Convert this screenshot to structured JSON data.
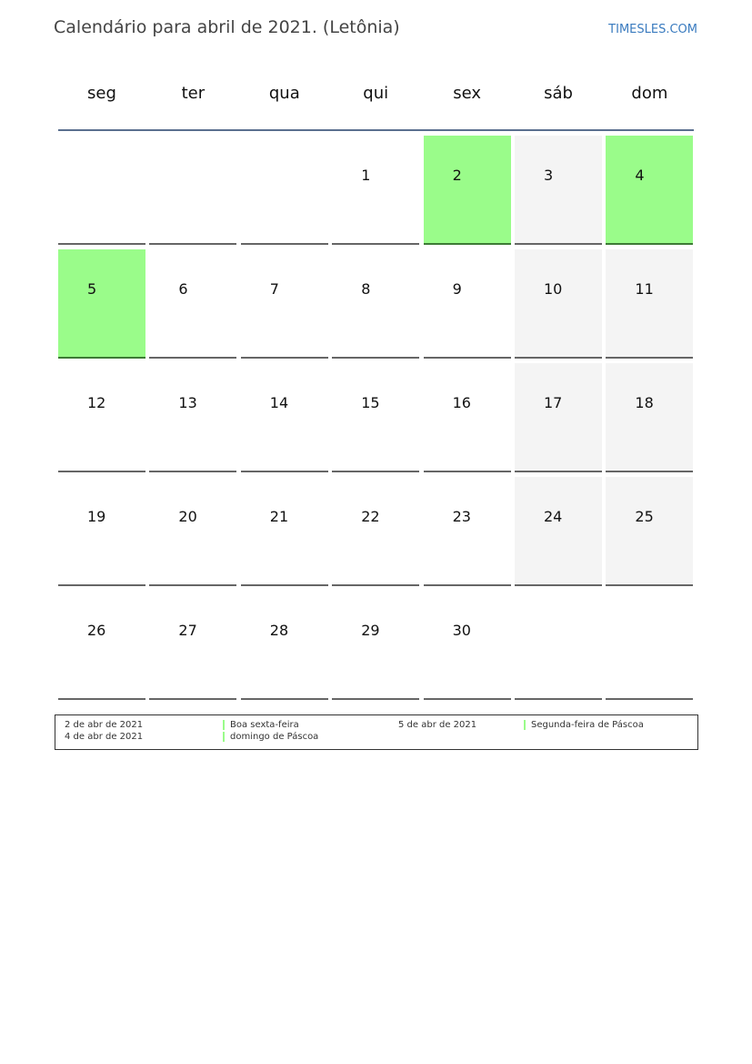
{
  "header": {
    "title": "Calendário para abril de 2021. (Letônia)",
    "brand": "TIMESLES.COM"
  },
  "weekdays": [
    "seg",
    "ter",
    "qua",
    "qui",
    "sex",
    "sáb",
    "dom"
  ],
  "colors": {
    "holiday": "#9afc8a",
    "weekend": "#f4f4f4",
    "header_line": "#5a6f8f"
  },
  "weeks": [
    [
      null,
      null,
      null,
      {
        "d": "1"
      },
      {
        "d": "2",
        "t": "hol"
      },
      {
        "d": "3",
        "t": "we"
      },
      {
        "d": "4",
        "t": "hol"
      }
    ],
    [
      {
        "d": "5",
        "t": "hol"
      },
      {
        "d": "6"
      },
      {
        "d": "7"
      },
      {
        "d": "8"
      },
      {
        "d": "9"
      },
      {
        "d": "10",
        "t": "we"
      },
      {
        "d": "11",
        "t": "we"
      }
    ],
    [
      {
        "d": "12"
      },
      {
        "d": "13"
      },
      {
        "d": "14"
      },
      {
        "d": "15"
      },
      {
        "d": "16"
      },
      {
        "d": "17",
        "t": "we"
      },
      {
        "d": "18",
        "t": "we"
      }
    ],
    [
      {
        "d": "19"
      },
      {
        "d": "20"
      },
      {
        "d": "21"
      },
      {
        "d": "22"
      },
      {
        "d": "23"
      },
      {
        "d": "24",
        "t": "we"
      },
      {
        "d": "25",
        "t": "we"
      }
    ],
    [
      {
        "d": "26"
      },
      {
        "d": "27"
      },
      {
        "d": "28"
      },
      {
        "d": "29"
      },
      {
        "d": "30"
      },
      null,
      null
    ]
  ],
  "legend": [
    {
      "date": "2 de abr de 2021",
      "name": "Boa sexta-feira"
    },
    {
      "date": "4 de abr de 2021",
      "name": "domingo de Páscoa"
    },
    {
      "date": "5 de abr de 2021",
      "name": "Segunda-feira de Páscoa"
    }
  ]
}
